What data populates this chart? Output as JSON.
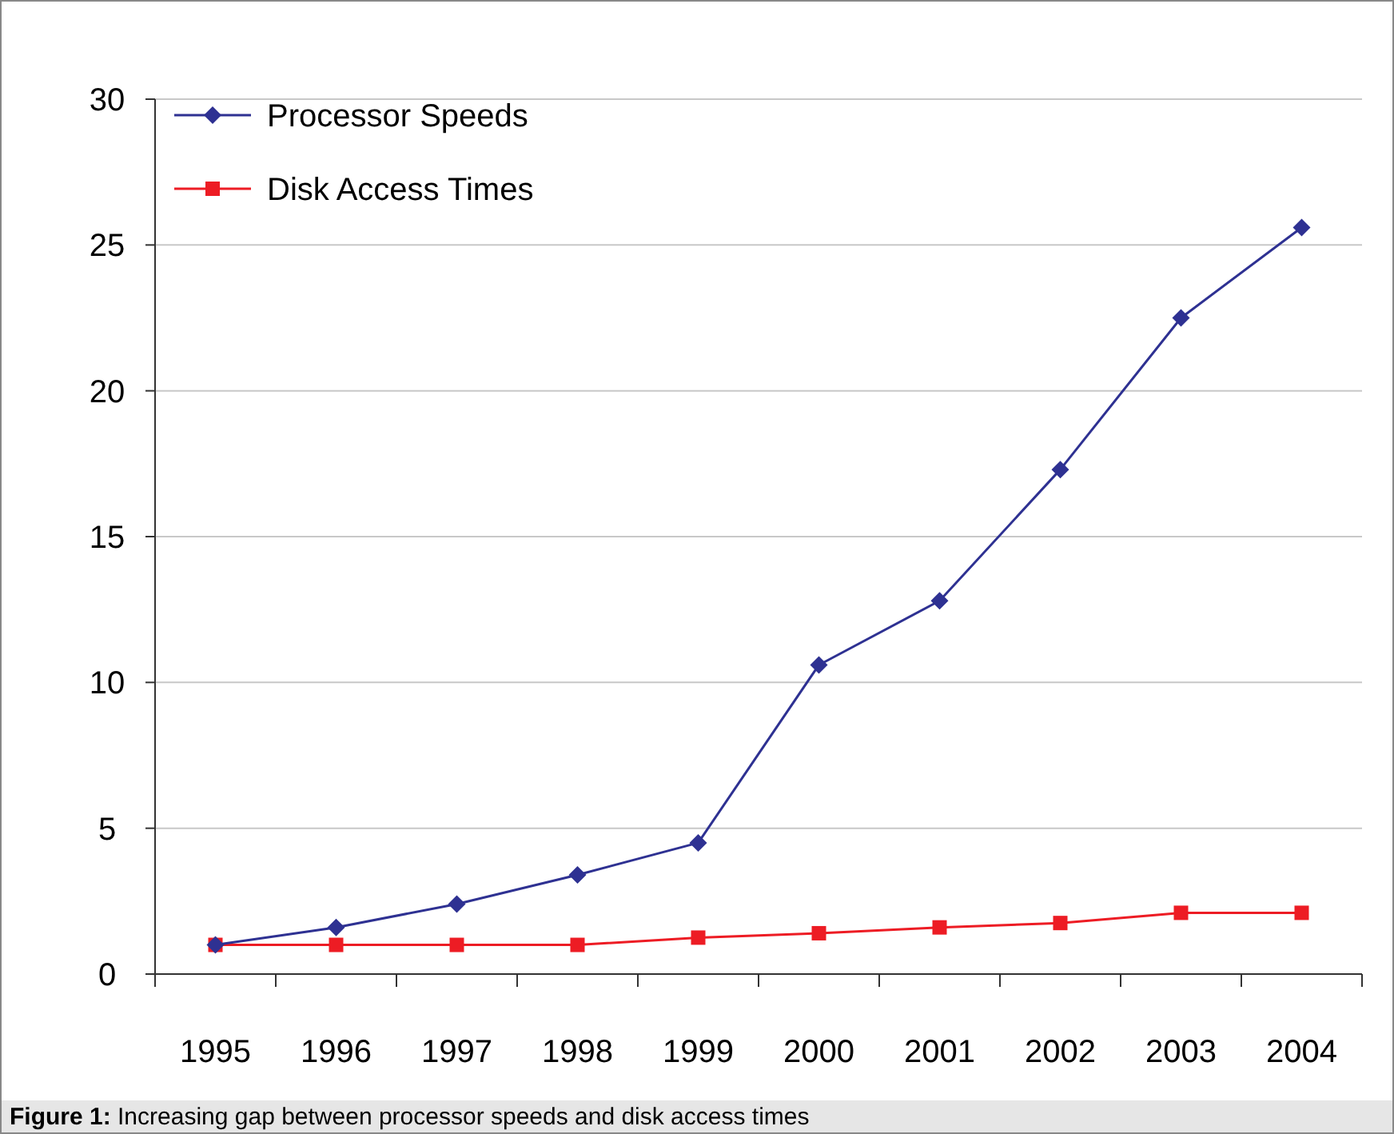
{
  "chart_data": {
    "type": "line",
    "categories": [
      "1995",
      "1996",
      "1997",
      "1998",
      "1999",
      "2000",
      "2001",
      "2002",
      "2003",
      "2004"
    ],
    "series": [
      {
        "name": "Processor Speeds",
        "color": "#2e3192",
        "marker": "diamond",
        "values": [
          1.0,
          1.6,
          2.4,
          3.4,
          4.5,
          10.6,
          12.8,
          17.3,
          22.5,
          25.6
        ]
      },
      {
        "name": "Disk Access Times",
        "color": "#ed1c24",
        "marker": "square",
        "values": [
          1.0,
          1.0,
          1.0,
          1.0,
          1.25,
          1.4,
          1.6,
          1.75,
          2.1,
          2.1
        ]
      }
    ],
    "ylim": [
      0,
      30
    ],
    "yticks": [
      0,
      5,
      10,
      15,
      20,
      25,
      30
    ],
    "grid": "y",
    "legend": "top left",
    "line_style": "solid",
    "annotations": [
      "Figure 1: Increasing gap between processor speeds and disk access times"
    ]
  }
}
